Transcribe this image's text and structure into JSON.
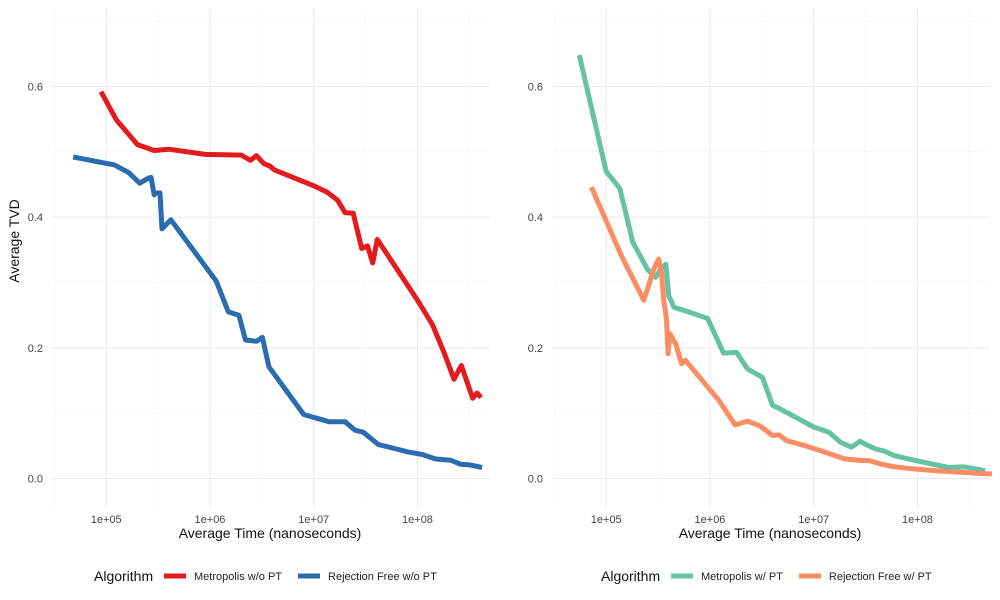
{
  "chart_data": [
    {
      "type": "line",
      "title": "",
      "xlabel": "Average Time (nanoseconds)",
      "ylabel": "Average TVD",
      "x_scale": "log10",
      "xlim": [
        30000,
        500000000
      ],
      "ylim": [
        -0.045,
        0.72
      ],
      "x_ticks": [
        {
          "value": 100000,
          "label": "1e+05"
        },
        {
          "value": 1000000,
          "label": "1e+06"
        },
        {
          "value": 10000000,
          "label": "1e+07"
        },
        {
          "value": 100000000,
          "label": "1e+08"
        }
      ],
      "y_ticks": [
        {
          "value": 0.0,
          "label": "0.0"
        },
        {
          "value": 0.2,
          "label": "0.2"
        },
        {
          "value": 0.4,
          "label": "0.4"
        },
        {
          "value": 0.6,
          "label": "0.6"
        }
      ],
      "legend_title": "Algorithm",
      "legend_position": "bottom",
      "series": [
        {
          "name": "Metropolis w/o PT",
          "color": "#e41a1c",
          "points": [
            [
              89000,
              0.592
            ],
            [
              125000,
              0.549
            ],
            [
              200000,
              0.511
            ],
            [
              290000,
              0.502
            ],
            [
              400000,
              0.504
            ],
            [
              900000,
              0.496
            ],
            [
              2000000,
              0.495
            ],
            [
              2450000,
              0.487
            ],
            [
              2800000,
              0.494
            ],
            [
              3300000,
              0.482
            ],
            [
              3800000,
              0.478
            ],
            [
              4200000,
              0.472
            ],
            [
              6500000,
              0.46
            ],
            [
              10000000,
              0.448
            ],
            [
              13500000,
              0.438
            ],
            [
              17000000,
              0.426
            ],
            [
              20000000,
              0.407
            ],
            [
              24000000,
              0.406
            ],
            [
              29000000,
              0.352
            ],
            [
              33000000,
              0.356
            ],
            [
              37000000,
              0.33
            ],
            [
              41000000,
              0.366
            ],
            [
              100000000,
              0.273
            ],
            [
              140000000,
              0.235
            ],
            [
              180000000,
              0.193
            ],
            [
              225000000,
              0.152
            ],
            [
              265000000,
              0.173
            ],
            [
              340000000,
              0.123
            ],
            [
              375000000,
              0.131
            ],
            [
              410000000,
              0.124
            ]
          ]
        },
        {
          "name": "Rejection Free w/o PT",
          "color": "#2b6cb0",
          "points": [
            [
              48000,
              0.492
            ],
            [
              120000,
              0.48
            ],
            [
              165000,
              0.468
            ],
            [
              210000,
              0.452
            ],
            [
              250000,
              0.459
            ],
            [
              270000,
              0.461
            ],
            [
              290000,
              0.434
            ],
            [
              300000,
              0.437
            ],
            [
              330000,
              0.437
            ],
            [
              345000,
              0.382
            ],
            [
              420000,
              0.396
            ],
            [
              1150000,
              0.302
            ],
            [
              1500000,
              0.255
            ],
            [
              1900000,
              0.25
            ],
            [
              2200000,
              0.212
            ],
            [
              2800000,
              0.21
            ],
            [
              3200000,
              0.216
            ],
            [
              3700000,
              0.171
            ],
            [
              8000000,
              0.098
            ],
            [
              14000000,
              0.087
            ],
            [
              20000000,
              0.087
            ],
            [
              25000000,
              0.074
            ],
            [
              30000000,
              0.071
            ],
            [
              42000000,
              0.052
            ],
            [
              60000000,
              0.046
            ],
            [
              80000000,
              0.041
            ],
            [
              110000000,
              0.037
            ],
            [
              150000000,
              0.03
            ],
            [
              210000000,
              0.028
            ],
            [
              260000000,
              0.022
            ],
            [
              320000000,
              0.021
            ],
            [
              420000000,
              0.017
            ]
          ]
        }
      ]
    },
    {
      "type": "line",
      "title": "",
      "xlabel": "Average Time (nanoseconds)",
      "ylabel": "",
      "x_scale": "log10",
      "xlim": [
        30000,
        500000000
      ],
      "ylim": [
        -0.045,
        0.72
      ],
      "x_ticks": [
        {
          "value": 100000,
          "label": "1e+05"
        },
        {
          "value": 1000000,
          "label": "1e+06"
        },
        {
          "value": 10000000,
          "label": "1e+07"
        },
        {
          "value": 100000000,
          "label": "1e+08"
        }
      ],
      "y_ticks": [
        {
          "value": 0.0,
          "label": "0.0"
        },
        {
          "value": 0.2,
          "label": "0.2"
        },
        {
          "value": 0.4,
          "label": "0.4"
        },
        {
          "value": 0.6,
          "label": "0.6"
        }
      ],
      "legend_title": "Algorithm",
      "legend_position": "bottom",
      "series": [
        {
          "name": "Metropolis w/ PT",
          "color": "#66c2a5",
          "points": [
            [
              55000,
              0.648
            ],
            [
              100000,
              0.47
            ],
            [
              135000,
              0.444
            ],
            [
              180000,
              0.362
            ],
            [
              250000,
              0.32
            ],
            [
              300000,
              0.308
            ],
            [
              340000,
              0.322
            ],
            [
              375000,
              0.328
            ],
            [
              400000,
              0.28
            ],
            [
              450000,
              0.262
            ],
            [
              600000,
              0.256
            ],
            [
              950000,
              0.245
            ],
            [
              1350000,
              0.192
            ],
            [
              1800000,
              0.193
            ],
            [
              2300000,
              0.168
            ],
            [
              2800000,
              0.16
            ],
            [
              3200000,
              0.155
            ],
            [
              4000000,
              0.112
            ],
            [
              4700000,
              0.107
            ],
            [
              10000000,
              0.079
            ],
            [
              14000000,
              0.071
            ],
            [
              18000000,
              0.056
            ],
            [
              23000000,
              0.048
            ],
            [
              28000000,
              0.057
            ],
            [
              33000000,
              0.051
            ],
            [
              40000000,
              0.045
            ],
            [
              48000000,
              0.042
            ],
            [
              60000000,
              0.035
            ],
            [
              100000000,
              0.027
            ],
            [
              200000000,
              0.017
            ],
            [
              280000000,
              0.018
            ],
            [
              450000000,
              0.012
            ]
          ]
        },
        {
          "name": "Rejection Free w/ PT",
          "color": "#fc8d62",
          "points": [
            [
              72000,
              0.446
            ],
            [
              140000,
              0.341
            ],
            [
              230000,
              0.273
            ],
            [
              290000,
              0.322
            ],
            [
              320000,
              0.336
            ],
            [
              340000,
              0.316
            ],
            [
              360000,
              0.27
            ],
            [
              380000,
              0.245
            ],
            [
              395000,
              0.191
            ],
            [
              410000,
              0.222
            ],
            [
              470000,
              0.205
            ],
            [
              530000,
              0.176
            ],
            [
              580000,
              0.181
            ],
            [
              1200000,
              0.121
            ],
            [
              1750000,
              0.082
            ],
            [
              2300000,
              0.088
            ],
            [
              3000000,
              0.081
            ],
            [
              4000000,
              0.066
            ],
            [
              4600000,
              0.067
            ],
            [
              5500000,
              0.058
            ],
            [
              8000000,
              0.051
            ],
            [
              12000000,
              0.042
            ],
            [
              20000000,
              0.03
            ],
            [
              27000000,
              0.028
            ],
            [
              35000000,
              0.027
            ],
            [
              45000000,
              0.022
            ],
            [
              60000000,
              0.018
            ],
            [
              90000000,
              0.015
            ],
            [
              150000000,
              0.012
            ],
            [
              250000000,
              0.01
            ],
            [
              400000000,
              0.008
            ],
            [
              520000000,
              0.007
            ]
          ]
        }
      ]
    }
  ]
}
